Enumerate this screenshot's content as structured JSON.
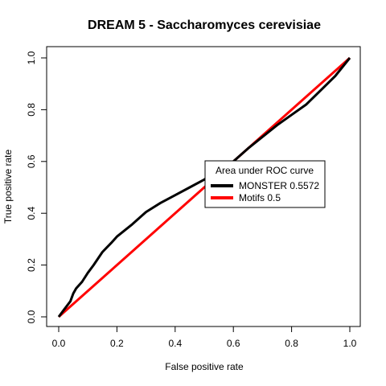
{
  "chart_data": {
    "type": "line",
    "title": "DREAM 5 - Saccharomyces cerevisiae",
    "xlabel": "False positive rate",
    "ylabel": "True positive rate",
    "xlim": [
      0,
      1
    ],
    "ylim": [
      0,
      1
    ],
    "x_ticks": [
      "0.0",
      "0.2",
      "0.4",
      "0.6",
      "0.8",
      "1.0"
    ],
    "y_ticks": [
      "0.0",
      "0.2",
      "0.4",
      "0.6",
      "0.8",
      "1.0"
    ],
    "grid": false,
    "legend": {
      "title": "Area under ROC curve",
      "placement": "center-right",
      "entries": [
        {
          "label": "MONSTER 0.5572",
          "color": "#000000"
        },
        {
          "label": "Motifs 0.5",
          "color": "#ff0000"
        }
      ]
    },
    "series": [
      {
        "name": "MONSTER 0.5572",
        "color": "#000000",
        "points": [
          [
            0.0,
            0.0
          ],
          [
            0.02,
            0.03
          ],
          [
            0.04,
            0.06
          ],
          [
            0.05,
            0.09
          ],
          [
            0.06,
            0.11
          ],
          [
            0.08,
            0.135
          ],
          [
            0.1,
            0.17
          ],
          [
            0.12,
            0.2
          ],
          [
            0.15,
            0.25
          ],
          [
            0.18,
            0.285
          ],
          [
            0.2,
            0.31
          ],
          [
            0.25,
            0.355
          ],
          [
            0.28,
            0.385
          ],
          [
            0.3,
            0.405
          ],
          [
            0.35,
            0.44
          ],
          [
            0.4,
            0.47
          ],
          [
            0.45,
            0.5
          ],
          [
            0.5,
            0.53
          ],
          [
            0.55,
            0.565
          ],
          [
            0.6,
            0.6
          ],
          [
            0.62,
            0.62
          ],
          [
            0.65,
            0.65
          ],
          [
            0.7,
            0.695
          ],
          [
            0.75,
            0.74
          ],
          [
            0.8,
            0.78
          ],
          [
            0.85,
            0.82
          ],
          [
            0.9,
            0.875
          ],
          [
            0.95,
            0.93
          ],
          [
            1.0,
            1.0
          ]
        ]
      },
      {
        "name": "Motifs 0.5",
        "color": "#ff0000",
        "points": [
          [
            0.0,
            0.0
          ],
          [
            1.0,
            1.0
          ]
        ]
      }
    ]
  }
}
